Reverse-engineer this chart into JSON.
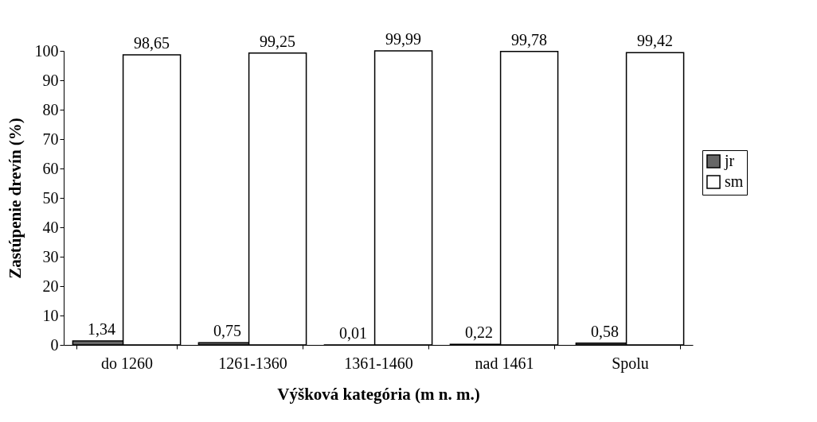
{
  "chart_data": {
    "type": "bar",
    "xlabel": "Výšková kategória (m n. m.)",
    "ylabel": "Zastúpenie drevín (%)",
    "categories": [
      "do 1260",
      "1261-1360",
      "1361-1460",
      "nad 1461",
      "Spolu"
    ],
    "series": [
      {
        "name": "jr",
        "color": "#666666",
        "values": [
          1.34,
          0.75,
          0.01,
          0.22,
          0.58
        ],
        "value_labels": [
          "1,34",
          "0,75",
          "0,01",
          "0,22",
          "0,58"
        ]
      },
      {
        "name": "sm",
        "color": "#ffffff",
        "values": [
          98.65,
          99.25,
          99.99,
          99.78,
          99.42
        ],
        "value_labels": [
          "98,65",
          "99,25",
          "99,99",
          "99,78",
          "99,42"
        ]
      }
    ],
    "ylim": [
      0,
      100
    ],
    "yticks": [
      0,
      10,
      20,
      30,
      40,
      50,
      60,
      70,
      80,
      90,
      100
    ],
    "grid": false,
    "legend": "right"
  }
}
